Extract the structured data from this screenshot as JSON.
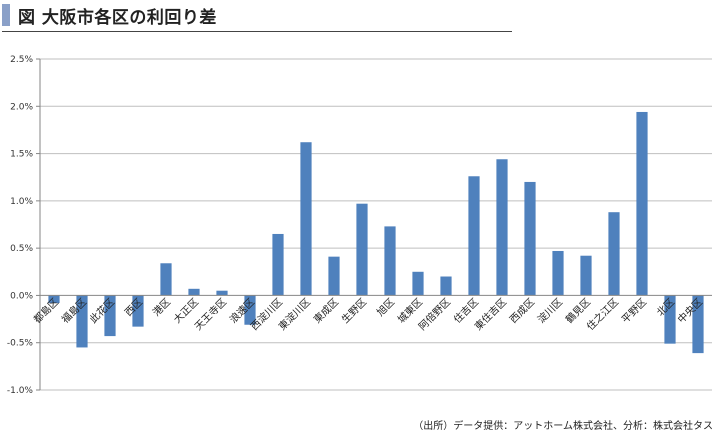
{
  "title": "図 大阪市各区の利回り差",
  "source": "（出所）データ提供：アットホーム株式会社、分析：株式会社タス",
  "colors": {
    "bar": "#4f81bd",
    "axis": "#868686",
    "grid": "#bfbfbf",
    "accent": "#8aa0c8"
  },
  "chart_data": {
    "type": "bar",
    "title": "",
    "xlabel": "",
    "ylabel": "",
    "ylim": [
      -0.01,
      0.025
    ],
    "yticks": [
      -0.01,
      -0.005,
      0.0,
      0.005,
      0.01,
      0.015,
      0.02,
      0.025
    ],
    "ytick_labels": [
      "-1.0%",
      "-0.5%",
      "0.0%",
      "0.5%",
      "1.0%",
      "1.5%",
      "2.0%",
      "2.5%"
    ],
    "grid": "horizontal",
    "legend": "none",
    "categories": [
      "都島区",
      "福島区",
      "此花区",
      "西区",
      "港区",
      "大正区",
      "天王寺区",
      "浪速区",
      "西淀川区",
      "東淀川区",
      "東成区",
      "生野区",
      "旭区",
      "城東区",
      "阿倍野区",
      "住吉区",
      "東住吉区",
      "西成区",
      "淀川区",
      "鶴見区",
      "住之江区",
      "平野区",
      "北区",
      "中央区"
    ],
    "values": [
      -0.0008,
      -0.0055,
      -0.0043,
      -0.0033,
      0.0034,
      0.0007,
      0.0005,
      -0.0031,
      0.0065,
      0.0162,
      0.0041,
      0.0097,
      0.0073,
      0.0025,
      0.002,
      0.0126,
      0.0144,
      0.012,
      0.0047,
      0.0042,
      0.0088,
      0.0194,
      -0.0051,
      -0.0061
    ]
  }
}
